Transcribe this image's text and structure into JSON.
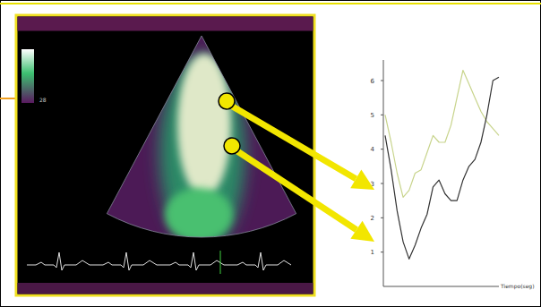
{
  "chart_data": {
    "type": "line",
    "x": [
      0,
      1,
      2,
      3,
      4,
      5,
      6,
      7,
      8,
      9,
      10,
      11,
      12,
      13,
      14,
      15,
      16,
      17,
      18,
      19
    ],
    "series": [
      {
        "color": "#c8d48c",
        "values": [
          5.0,
          4.2,
          3.3,
          2.6,
          2.8,
          3.3,
          3.4,
          3.9,
          4.4,
          4.2,
          4.2,
          4.7,
          5.5,
          6.3,
          5.9,
          5.5,
          5.1,
          4.8,
          4.6,
          4.4
        ]
      },
      {
        "color": "#333333",
        "values": [
          4.4,
          3.4,
          2.2,
          1.3,
          0.8,
          1.2,
          1.7,
          2.1,
          2.9,
          3.1,
          2.7,
          2.5,
          2.5,
          3.1,
          3.5,
          3.7,
          4.2,
          5.0,
          6.0,
          6.1
        ]
      }
    ],
    "x_label": "Tiempo(seg)",
    "xlim": [
      0,
      19
    ],
    "ylim": [
      0,
      6.6
    ],
    "yticks": [
      1,
      2,
      3,
      4,
      5,
      6
    ],
    "tick_labels": "y",
    "grid": false
  },
  "image": {
    "colorbar_label": "28"
  }
}
